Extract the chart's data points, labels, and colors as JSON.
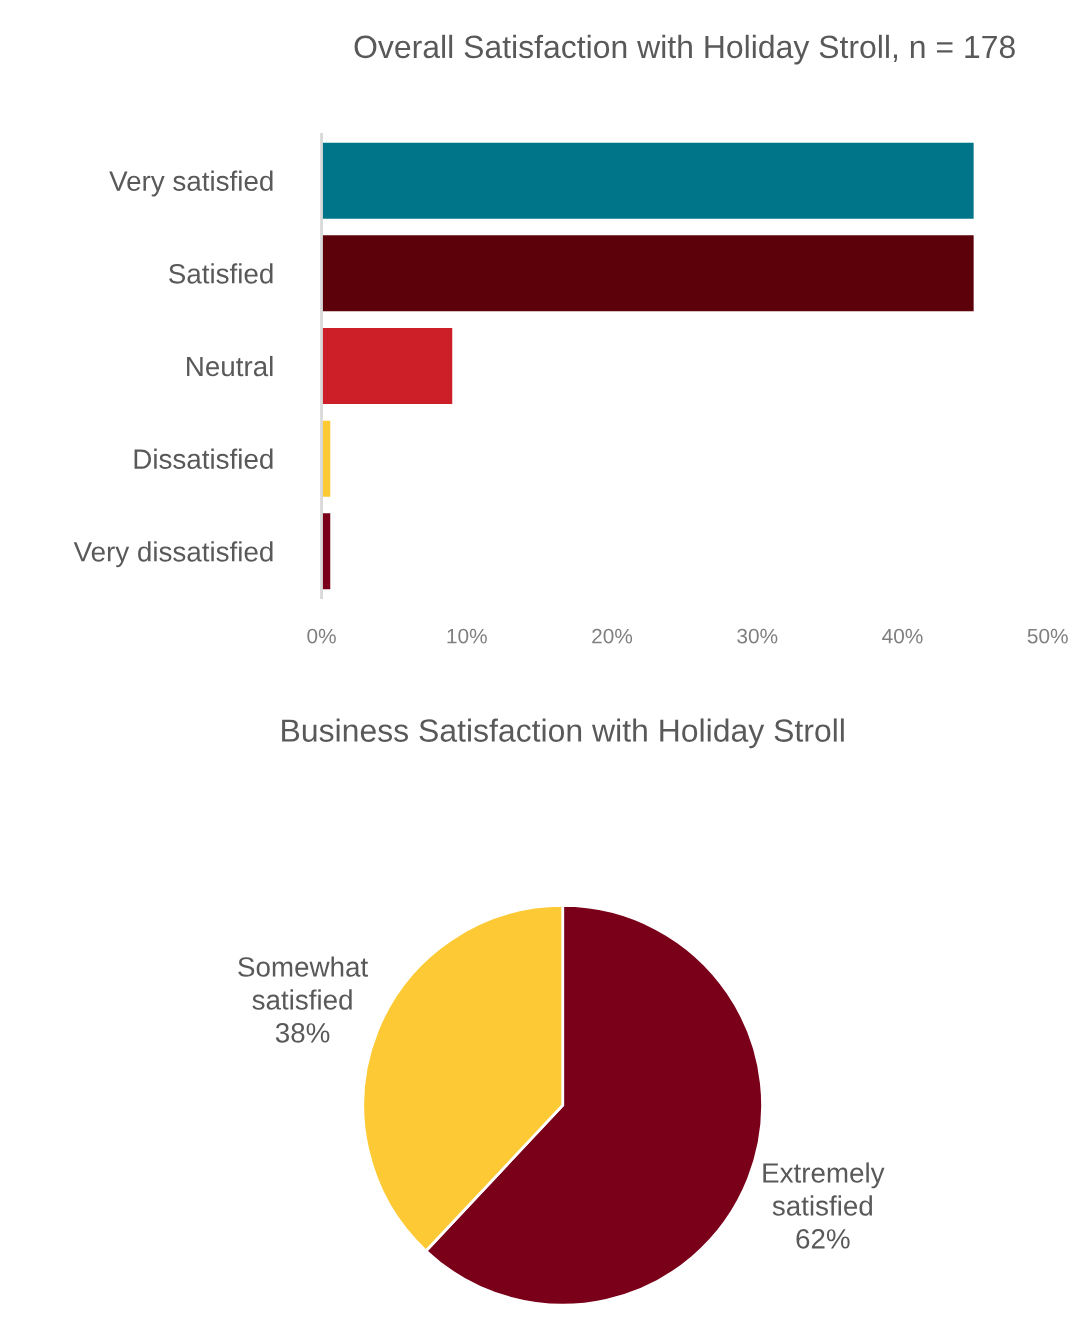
{
  "chart_data": [
    {
      "type": "bar",
      "orientation": "horizontal",
      "title": "Overall Satisfaction with Holiday Stroll, n = 178",
      "categories": [
        "Very satisfied",
        "Satisfied",
        "Neutral",
        "Dissatisfied",
        "Very dissatisfied"
      ],
      "values": [
        44.9,
        44.9,
        9.0,
        0.6,
        0.6
      ],
      "colors": [
        "#007589",
        "#5c0009",
        "#cc1f27",
        "#fec933",
        "#7a0019"
      ],
      "xlim": [
        0,
        50
      ],
      "xticks": [
        {
          "value": 0,
          "label": "0%"
        },
        {
          "value": 10,
          "label": "10%"
        },
        {
          "value": 20,
          "label": "20%"
        },
        {
          "value": 30,
          "label": "30%"
        },
        {
          "value": 40,
          "label": "40%"
        },
        {
          "value": 50,
          "label": "50%"
        }
      ],
      "grid": false,
      "legend": false
    },
    {
      "type": "pie",
      "title": "Business Satisfaction with Holiday Stroll",
      "categories": [
        "Extremely\nsatisfied",
        "Somewhat\nsatisfied"
      ],
      "values": [
        62,
        38
      ],
      "colors": [
        "#7a0019",
        "#fdca35"
      ],
      "value_labels": [
        "62%",
        "38%"
      ],
      "legend": false
    }
  ]
}
